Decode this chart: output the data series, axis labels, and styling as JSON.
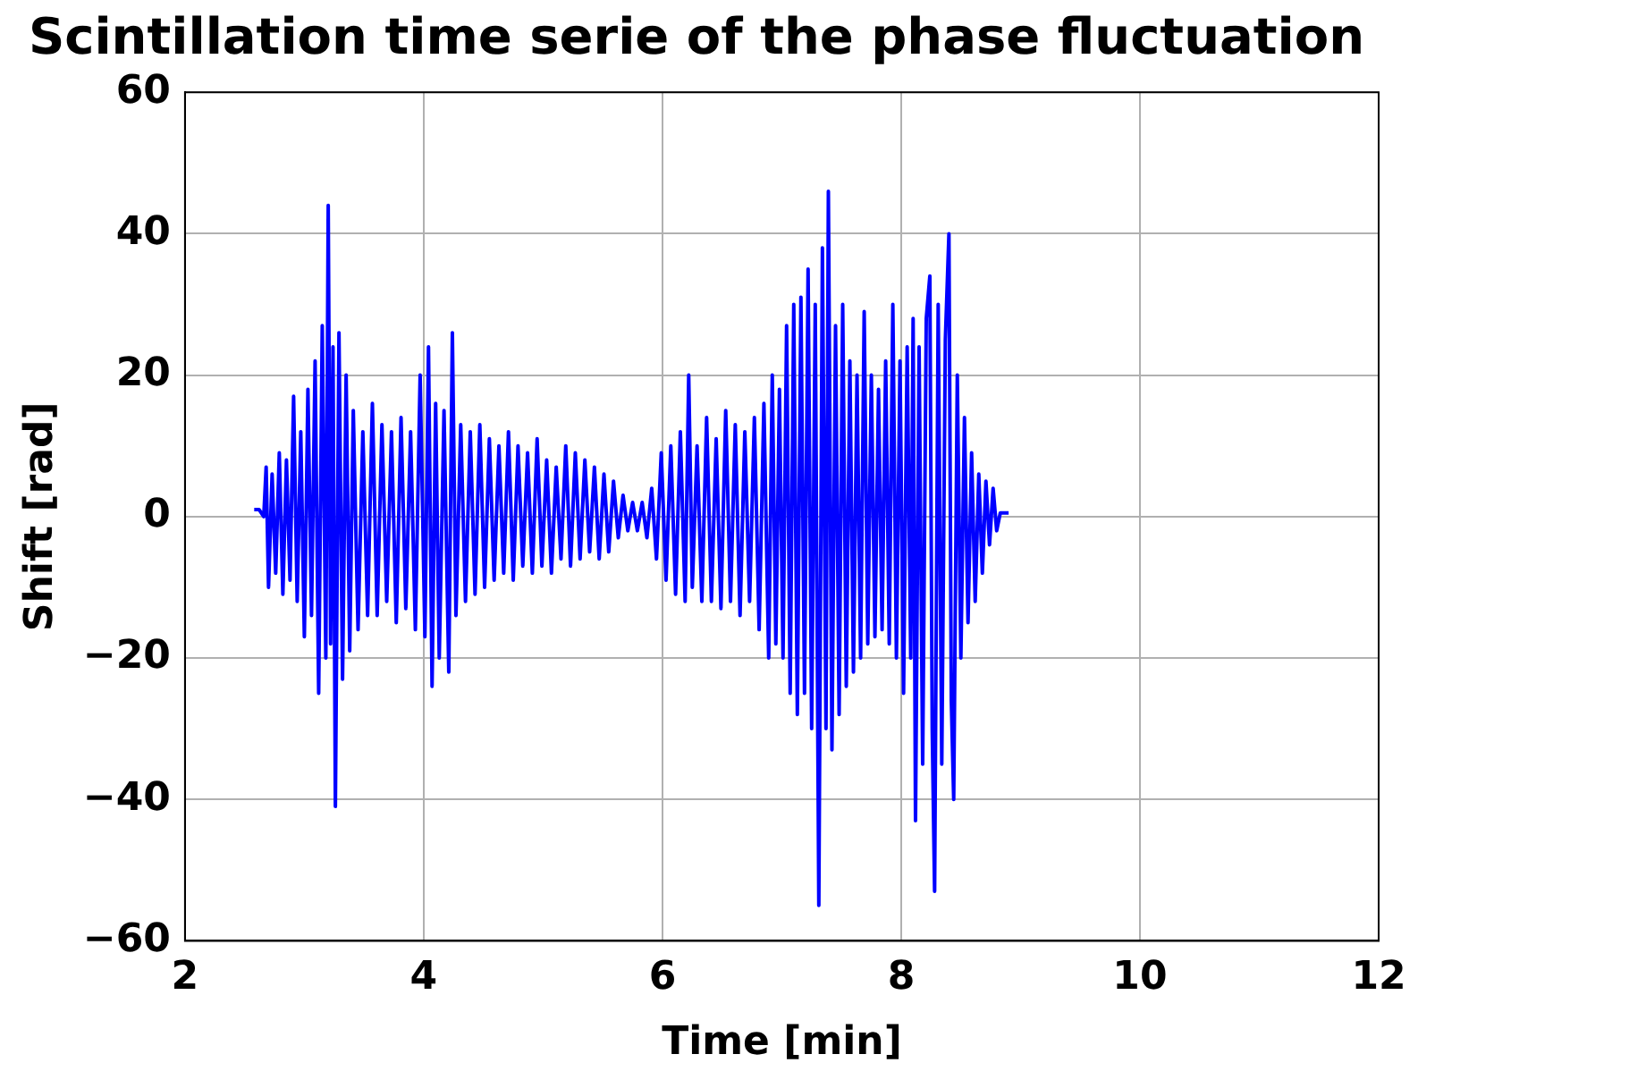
{
  "chart_data": {
    "type": "line",
    "title": "Scintillation time serie of the phase fluctuation",
    "xlabel": "Time [min]",
    "ylabel": "Shift [rad]",
    "xlim": [
      2,
      12
    ],
    "xticks": [
      2,
      4,
      6,
      8,
      10,
      12
    ],
    "ylim": [
      -60,
      60
    ],
    "yticks": [
      {
        "value": -60,
        "label": "−60"
      },
      {
        "value": -40,
        "label": "−40"
      },
      {
        "value": -20,
        "label": "−20"
      },
      0,
      20,
      40,
      60
    ],
    "grid": true,
    "marker": "none",
    "line_style": "solid",
    "series": [
      {
        "color": "#0000ff",
        "x": [
          2.58,
          2.62,
          2.66,
          2.68,
          2.7,
          2.73,
          2.76,
          2.79,
          2.82,
          2.85,
          2.88,
          2.91,
          2.94,
          2.97,
          3.0,
          3.03,
          3.06,
          3.09,
          3.12,
          3.15,
          3.18,
          3.2,
          3.22,
          3.24,
          3.26,
          3.29,
          3.32,
          3.35,
          3.38,
          3.41,
          3.45,
          3.49,
          3.53,
          3.57,
          3.61,
          3.65,
          3.69,
          3.73,
          3.77,
          3.81,
          3.85,
          3.89,
          3.93,
          3.97,
          4.01,
          4.04,
          4.07,
          4.1,
          4.13,
          4.17,
          4.21,
          4.24,
          4.27,
          4.31,
          4.35,
          4.39,
          4.43,
          4.47,
          4.51,
          4.55,
          4.59,
          4.63,
          4.67,
          4.71,
          4.75,
          4.79,
          4.83,
          4.87,
          4.91,
          4.95,
          4.99,
          5.03,
          5.07,
          5.11,
          5.15,
          5.19,
          5.23,
          5.27,
          5.31,
          5.35,
          5.39,
          5.43,
          5.47,
          5.51,
          5.55,
          5.59,
          5.63,
          5.67,
          5.71,
          5.75,
          5.79,
          5.83,
          5.87,
          5.91,
          5.95,
          5.99,
          6.03,
          6.07,
          6.11,
          6.15,
          6.19,
          6.22,
          6.25,
          6.29,
          6.33,
          6.37,
          6.41,
          6.45,
          6.49,
          6.53,
          6.57,
          6.61,
          6.65,
          6.69,
          6.73,
          6.77,
          6.81,
          6.85,
          6.89,
          6.92,
          6.95,
          6.98,
          7.01,
          7.04,
          7.07,
          7.1,
          7.13,
          7.16,
          7.19,
          7.22,
          7.25,
          7.28,
          7.31,
          7.34,
          7.37,
          7.39,
          7.42,
          7.45,
          7.48,
          7.51,
          7.54,
          7.57,
          7.6,
          7.63,
          7.66,
          7.69,
          7.72,
          7.75,
          7.78,
          7.81,
          7.84,
          7.87,
          7.9,
          7.93,
          7.96,
          7.99,
          8.02,
          8.05,
          8.08,
          8.1,
          8.12,
          8.15,
          8.18,
          8.21,
          8.24,
          8.26,
          8.28,
          8.31,
          8.34,
          8.37,
          8.4,
          8.42,
          8.44,
          8.47,
          8.5,
          8.53,
          8.56,
          8.59,
          8.62,
          8.65,
          8.68,
          8.71,
          8.74,
          8.77,
          8.8,
          8.83,
          8.9
        ],
        "values": [
          1,
          1,
          0,
          7,
          -10,
          6,
          -8,
          9,
          -11,
          8,
          -9,
          17,
          -12,
          12,
          -17,
          18,
          -14,
          22,
          -25,
          27,
          -20,
          44,
          -18,
          24,
          -41,
          26,
          -23,
          20,
          -19,
          15,
          -16,
          12,
          -14,
          16,
          -14,
          13,
          -12,
          12,
          -15,
          14,
          -13,
          12,
          -16,
          20,
          -17,
          24,
          -24,
          16,
          -20,
          15,
          -22,
          26,
          -14,
          13,
          -12,
          12,
          -11,
          13,
          -10,
          11,
          -9,
          10,
          -8,
          12,
          -9,
          10,
          -7,
          9,
          -8,
          11,
          -7,
          8,
          -8,
          7,
          -6,
          10,
          -7,
          9,
          -6,
          8,
          -5,
          7,
          -6,
          6,
          -5,
          5,
          -3,
          3,
          -2,
          2,
          -2,
          2,
          -3,
          4,
          -6,
          9,
          -9,
          10,
          -11,
          12,
          -12,
          20,
          -10,
          10,
          -12,
          14,
          -12,
          11,
          -13,
          15,
          -12,
          13,
          -14,
          12,
          -12,
          14,
          -16,
          16,
          -20,
          20,
          -18,
          18,
          -20,
          27,
          -25,
          30,
          -28,
          31,
          -25,
          35,
          -30,
          30,
          -55,
          38,
          -30,
          46,
          -33,
          27,
          -28,
          30,
          -24,
          22,
          -22,
          20,
          -20,
          29,
          -18,
          20,
          -17,
          18,
          -16,
          22,
          -18,
          30,
          -20,
          22,
          -25,
          24,
          -20,
          28,
          -43,
          24,
          -35,
          28,
          34,
          -30,
          -53,
          30,
          -35,
          25,
          40,
          -26,
          -40,
          20,
          -20,
          14,
          -15,
          9,
          -12,
          6,
          -8,
          5,
          -4,
          4,
          -2,
          0.5,
          0.5
        ]
      }
    ]
  }
}
